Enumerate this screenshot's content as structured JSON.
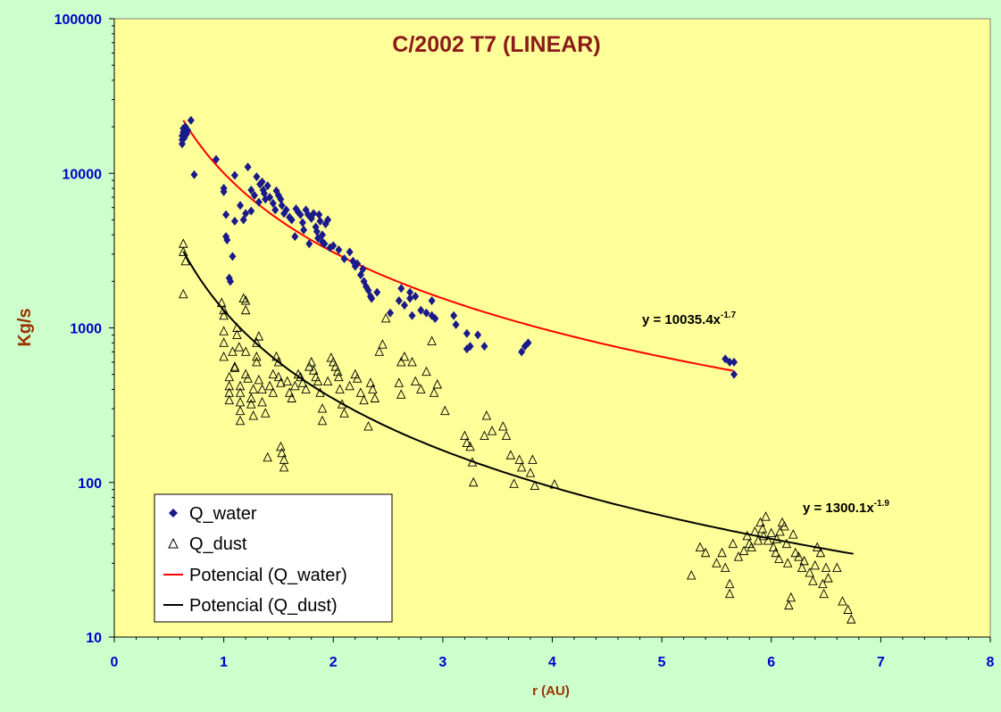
{
  "colors": {
    "background": "#ccffcc",
    "plot_area": "#ffff99",
    "axis_text": "#0000cc",
    "axis_title": "#993300",
    "title": "#8b1a1a",
    "water_marker": "#1a1a8c",
    "water_fit": "#ff0000",
    "dust_fit": "#000000"
  },
  "chart_data": {
    "type": "scatter",
    "title": "C/2002 T7 (LINEAR)",
    "xlabel": "r (AU)",
    "ylabel": "Kg/s",
    "xlim": [
      0,
      8
    ],
    "ylim": [
      10,
      100000
    ],
    "y_scale": "log",
    "x_ticks": [
      "0",
      "1",
      "2",
      "3",
      "4",
      "5",
      "6",
      "7",
      "8"
    ],
    "y_ticks": [
      "10",
      "100",
      "1000",
      "10000",
      "100000"
    ],
    "grid": false,
    "legend_position": "bottom-left",
    "legend": [
      {
        "label": "Q_water",
        "marker": "diamond"
      },
      {
        "label": "Q_dust",
        "marker": "triangle-open"
      },
      {
        "label": "Potencial (Q_water)",
        "marker": "line-red"
      },
      {
        "label": "Potencial (Q_dust)",
        "marker": "line-black"
      }
    ],
    "annotations": [
      {
        "text": "y = 10035.4x",
        "sup": "-1.7"
      },
      {
        "text": "y = 1300.1x",
        "sup": "-1.9"
      }
    ],
    "fits": [
      {
        "name": "Potencial (Q_water)",
        "a": 10035.4,
        "b": -1.7,
        "xrange": [
          0.63,
          5.65
        ]
      },
      {
        "name": "Potencial (Q_dust)",
        "a": 1300.1,
        "b": -1.9,
        "xrange": [
          0.63,
          6.75
        ]
      }
    ],
    "series": [
      {
        "name": "Q_water",
        "points": [
          [
            0.62,
            15500
          ],
          [
            0.62,
            16500
          ],
          [
            0.62,
            17500
          ],
          [
            0.63,
            18500
          ],
          [
            0.63,
            19500
          ],
          [
            0.64,
            17000
          ],
          [
            0.65,
            20000
          ],
          [
            0.66,
            18000
          ],
          [
            0.67,
            19000
          ],
          [
            0.7,
            22000
          ],
          [
            0.73,
            9800
          ],
          [
            0.93,
            12300
          ],
          [
            1.0,
            8000
          ],
          [
            1.0,
            7600
          ],
          [
            1.02,
            5400
          ],
          [
            1.02,
            3900
          ],
          [
            1.03,
            3700
          ],
          [
            1.05,
            2100
          ],
          [
            1.06,
            2000
          ],
          [
            1.08,
            2900
          ],
          [
            1.1,
            9700
          ],
          [
            1.1,
            4900
          ],
          [
            1.15,
            6200
          ],
          [
            1.18,
            5000
          ],
          [
            1.2,
            5500
          ],
          [
            1.22,
            11000
          ],
          [
            1.25,
            5700
          ],
          [
            1.25,
            7800
          ],
          [
            1.28,
            7200
          ],
          [
            1.3,
            9500
          ],
          [
            1.32,
            6500
          ],
          [
            1.33,
            8500
          ],
          [
            1.35,
            8800
          ],
          [
            1.36,
            7800
          ],
          [
            1.37,
            7400
          ],
          [
            1.38,
            6800
          ],
          [
            1.4,
            8300
          ],
          [
            1.42,
            7000
          ],
          [
            1.45,
            6400
          ],
          [
            1.47,
            5800
          ],
          [
            1.48,
            7700
          ],
          [
            1.5,
            7200
          ],
          [
            1.52,
            6800
          ],
          [
            1.53,
            6200
          ],
          [
            1.55,
            5500
          ],
          [
            1.57,
            5800
          ],
          [
            1.6,
            5200
          ],
          [
            1.62,
            5000
          ],
          [
            1.65,
            3900
          ],
          [
            1.66,
            5900
          ],
          [
            1.68,
            5600
          ],
          [
            1.7,
            5400
          ],
          [
            1.72,
            4800
          ],
          [
            1.73,
            4300
          ],
          [
            1.75,
            5800
          ],
          [
            1.77,
            5400
          ],
          [
            1.78,
            3500
          ],
          [
            1.8,
            5100
          ],
          [
            1.82,
            5500
          ],
          [
            1.84,
            4500
          ],
          [
            1.85,
            4200
          ],
          [
            1.86,
            3800
          ],
          [
            1.87,
            5400
          ],
          [
            1.88,
            4900
          ],
          [
            1.9,
            4000
          ],
          [
            1.9,
            3600
          ],
          [
            1.92,
            3500
          ],
          [
            1.93,
            4700
          ],
          [
            1.95,
            5000
          ],
          [
            1.97,
            3300
          ],
          [
            2.0,
            3400
          ],
          [
            2.05,
            3200
          ],
          [
            2.1,
            2800
          ],
          [
            2.15,
            3100
          ],
          [
            2.18,
            2700
          ],
          [
            2.2,
            2500
          ],
          [
            2.22,
            2600
          ],
          [
            2.25,
            2200
          ],
          [
            2.27,
            2400
          ],
          [
            2.28,
            2000
          ],
          [
            2.3,
            1850
          ],
          [
            2.32,
            1750
          ],
          [
            2.34,
            1600
          ],
          [
            2.35,
            1550
          ],
          [
            2.4,
            1700
          ],
          [
            2.52,
            1250
          ],
          [
            2.6,
            1500
          ],
          [
            2.62,
            1800
          ],
          [
            2.65,
            1400
          ],
          [
            2.7,
            1700
          ],
          [
            2.7,
            1550
          ],
          [
            2.72,
            1200
          ],
          [
            2.75,
            1600
          ],
          [
            2.8,
            1300
          ],
          [
            2.85,
            1250
          ],
          [
            2.9,
            1500
          ],
          [
            2.9,
            1200
          ],
          [
            2.93,
            1150
          ],
          [
            3.1,
            1200
          ],
          [
            3.12,
            1050
          ],
          [
            3.22,
            920
          ],
          [
            3.22,
            730
          ],
          [
            3.25,
            760
          ],
          [
            3.32,
            900
          ],
          [
            3.38,
            760
          ],
          [
            3.72,
            700
          ],
          [
            3.75,
            760
          ],
          [
            3.78,
            800
          ],
          [
            5.58,
            630
          ],
          [
            5.62,
            600
          ],
          [
            5.66,
            600
          ],
          [
            5.66,
            500
          ]
        ]
      },
      {
        "name": "Q_dust",
        "points": [
          [
            0.63,
            3500
          ],
          [
            0.63,
            3100
          ],
          [
            0.63,
            1650
          ],
          [
            0.65,
            2700
          ],
          [
            0.98,
            1450
          ],
          [
            1.0,
            1300
          ],
          [
            1.0,
            1200
          ],
          [
            1.0,
            950
          ],
          [
            1.0,
            800
          ],
          [
            1.0,
            650
          ],
          [
            1.05,
            480
          ],
          [
            1.05,
            420
          ],
          [
            1.05,
            380
          ],
          [
            1.05,
            340
          ],
          [
            1.08,
            700
          ],
          [
            1.1,
            560
          ],
          [
            1.1,
            550
          ],
          [
            1.12,
            1000
          ],
          [
            1.12,
            900
          ],
          [
            1.14,
            750
          ],
          [
            1.15,
            420
          ],
          [
            1.15,
            380
          ],
          [
            1.15,
            330
          ],
          [
            1.15,
            290
          ],
          [
            1.15,
            250
          ],
          [
            1.18,
            1550
          ],
          [
            1.2,
            1500
          ],
          [
            1.2,
            1300
          ],
          [
            1.2,
            700
          ],
          [
            1.2,
            500
          ],
          [
            1.22,
            470
          ],
          [
            1.25,
            350
          ],
          [
            1.25,
            320
          ],
          [
            1.27,
            400
          ],
          [
            1.27,
            270
          ],
          [
            1.3,
            800
          ],
          [
            1.3,
            650
          ],
          [
            1.3,
            600
          ],
          [
            1.32,
            880
          ],
          [
            1.32,
            460
          ],
          [
            1.35,
            400
          ],
          [
            1.35,
            330
          ],
          [
            1.38,
            280
          ],
          [
            1.4,
            145
          ],
          [
            1.42,
            420
          ],
          [
            1.45,
            500
          ],
          [
            1.45,
            380
          ],
          [
            1.48,
            650
          ],
          [
            1.5,
            600
          ],
          [
            1.5,
            480
          ],
          [
            1.52,
            440
          ],
          [
            1.52,
            170
          ],
          [
            1.53,
            155
          ],
          [
            1.55,
            140
          ],
          [
            1.55,
            125
          ],
          [
            1.58,
            450
          ],
          [
            1.6,
            380
          ],
          [
            1.62,
            350
          ],
          [
            1.65,
            420
          ],
          [
            1.68,
            500
          ],
          [
            1.7,
            480
          ],
          [
            1.72,
            440
          ],
          [
            1.75,
            400
          ],
          [
            1.78,
            560
          ],
          [
            1.8,
            600
          ],
          [
            1.82,
            530
          ],
          [
            1.84,
            480
          ],
          [
            1.86,
            450
          ],
          [
            1.88,
            380
          ],
          [
            1.9,
            300
          ],
          [
            1.9,
            250
          ],
          [
            1.95,
            450
          ],
          [
            1.98,
            640
          ],
          [
            2.0,
            600
          ],
          [
            2.02,
            560
          ],
          [
            2.04,
            520
          ],
          [
            2.05,
            480
          ],
          [
            2.06,
            400
          ],
          [
            2.08,
            320
          ],
          [
            2.1,
            280
          ],
          [
            2.15,
            420
          ],
          [
            2.2,
            500
          ],
          [
            2.22,
            470
          ],
          [
            2.25,
            380
          ],
          [
            2.28,
            340
          ],
          [
            2.32,
            230
          ],
          [
            2.34,
            440
          ],
          [
            2.36,
            400
          ],
          [
            2.38,
            350
          ],
          [
            2.42,
            700
          ],
          [
            2.45,
            780
          ],
          [
            2.48,
            1150
          ],
          [
            2.6,
            440
          ],
          [
            2.62,
            370
          ],
          [
            2.62,
            600
          ],
          [
            2.65,
            650
          ],
          [
            2.72,
            600
          ],
          [
            2.75,
            450
          ],
          [
            2.8,
            400
          ],
          [
            2.85,
            520
          ],
          [
            2.9,
            820
          ],
          [
            2.92,
            380
          ],
          [
            2.95,
            430
          ],
          [
            3.02,
            290
          ],
          [
            3.2,
            200
          ],
          [
            3.22,
            180
          ],
          [
            3.25,
            170
          ],
          [
            3.27,
            135
          ],
          [
            3.28,
            100
          ],
          [
            3.38,
            200
          ],
          [
            3.4,
            270
          ],
          [
            3.45,
            215
          ],
          [
            3.55,
            230
          ],
          [
            3.58,
            200
          ],
          [
            3.62,
            150
          ],
          [
            3.65,
            98
          ],
          [
            3.7,
            140
          ],
          [
            3.72,
            125
          ],
          [
            3.8,
            115
          ],
          [
            3.82,
            140
          ],
          [
            3.84,
            95
          ],
          [
            4.02,
            97
          ],
          [
            5.27,
            25
          ],
          [
            5.35,
            38
          ],
          [
            5.4,
            35
          ],
          [
            5.5,
            30
          ],
          [
            5.55,
            35
          ],
          [
            5.58,
            28
          ],
          [
            5.62,
            22
          ],
          [
            5.62,
            19
          ],
          [
            5.65,
            40
          ],
          [
            5.7,
            33
          ],
          [
            5.75,
            36
          ],
          [
            5.78,
            45
          ],
          [
            5.8,
            40
          ],
          [
            5.82,
            38
          ],
          [
            5.85,
            48
          ],
          [
            5.88,
            42
          ],
          [
            5.9,
            55
          ],
          [
            5.92,
            50
          ],
          [
            5.93,
            45
          ],
          [
            5.95,
            60
          ],
          [
            5.97,
            42
          ],
          [
            6.0,
            47
          ],
          [
            6.02,
            38
          ],
          [
            6.04,
            35
          ],
          [
            6.05,
            43
          ],
          [
            6.07,
            32
          ],
          [
            6.08,
            48
          ],
          [
            6.1,
            55
          ],
          [
            6.12,
            52
          ],
          [
            6.14,
            40
          ],
          [
            6.15,
            30
          ],
          [
            6.16,
            16
          ],
          [
            6.18,
            18
          ],
          [
            6.2,
            46
          ],
          [
            6.22,
            35
          ],
          [
            6.25,
            33
          ],
          [
            6.28,
            28
          ],
          [
            6.3,
            31
          ],
          [
            6.35,
            26
          ],
          [
            6.38,
            23
          ],
          [
            6.4,
            29
          ],
          [
            6.42,
            38
          ],
          [
            6.45,
            35
          ],
          [
            6.47,
            22
          ],
          [
            6.48,
            19
          ],
          [
            6.5,
            28
          ],
          [
            6.52,
            24
          ],
          [
            6.6,
            28
          ],
          [
            6.65,
            17
          ],
          [
            6.7,
            15
          ],
          [
            6.73,
            13
          ]
        ]
      }
    ]
  }
}
